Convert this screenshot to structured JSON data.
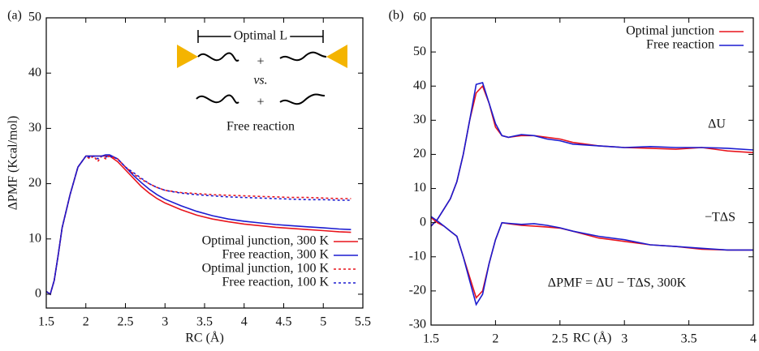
{
  "chart_data": [
    {
      "type": "line",
      "panel_label": "(a)",
      "xlabel": "RC (Å)",
      "ylabel": "ΔPMF (Kcal/mol)",
      "xlim": [
        1.5,
        5.5
      ],
      "xticks": [
        1.5,
        2,
        2.5,
        3,
        3.5,
        4,
        4.5,
        5,
        5.5
      ],
      "ylim": [
        -2.5,
        50
      ],
      "yticks": [
        0,
        10,
        20,
        30,
        40,
        50
      ],
      "legend": "lower right",
      "inset": {
        "labels": [
          "Optimal L",
          "+",
          "vs.",
          "+",
          "Free reaction"
        ]
      },
      "x": [
        1.5,
        1.55,
        1.6,
        1.65,
        1.7,
        1.75,
        1.8,
        1.9,
        2.0,
        2.05,
        2.1,
        2.15,
        2.2,
        2.25,
        2.3,
        2.4,
        2.5,
        2.6,
        2.7,
        2.8,
        2.9,
        3.0,
        3.2,
        3.4,
        3.6,
        3.8,
        4.0,
        4.2,
        4.4,
        4.6,
        4.8,
        5.0,
        5.2,
        5.35
      ],
      "series": [
        {
          "name": "Optimal junction, 300 K",
          "color": "#e8141c",
          "dash": false,
          "values": [
            0.5,
            0,
            2.5,
            7,
            12,
            15,
            18,
            23,
            25,
            25,
            25,
            25,
            25,
            25,
            25,
            24,
            22.5,
            21,
            19.5,
            18.3,
            17.3,
            16.5,
            15.3,
            14.3,
            13.6,
            13.1,
            12.7,
            12.4,
            12.1,
            11.9,
            11.7,
            11.5,
            11.3,
            11.2
          ]
        },
        {
          "name": "Free reaction, 300 K",
          "color": "#1c1cd0",
          "dash": false,
          "values": [
            0.5,
            0,
            2.5,
            7,
            12,
            15,
            18,
            23,
            25,
            25,
            25,
            25,
            25,
            25.2,
            25.2,
            24.5,
            23,
            21.5,
            20.2,
            19,
            18,
            17.2,
            16,
            15,
            14.2,
            13.6,
            13.2,
            12.9,
            12.6,
            12.4,
            12.2,
            12,
            11.8,
            11.7
          ]
        },
        {
          "name": "Optimal junction, 100 K",
          "color": "#e8141c",
          "dash": true,
          "values": [
            0.5,
            0,
            2.5,
            7,
            12,
            15,
            18,
            23,
            25,
            24.5,
            25,
            24,
            25,
            24.5,
            25,
            24.5,
            23,
            21.8,
            20.8,
            20,
            19.3,
            18.8,
            18.4,
            18.2,
            18,
            17.9,
            17.8,
            17.7,
            17.6,
            17.5,
            17.5,
            17.4,
            17.3,
            17.3
          ]
        },
        {
          "name": "Free reaction, 100 K",
          "color": "#1c1cd0",
          "dash": true,
          "values": [
            0.5,
            0,
            2.5,
            7,
            12,
            15,
            18,
            23,
            25,
            24.8,
            25,
            24.5,
            25,
            24.8,
            25,
            24.5,
            23,
            22,
            21,
            20,
            19.3,
            18.8,
            18.3,
            18,
            17.8,
            17.6,
            17.5,
            17.4,
            17.3,
            17.2,
            17.1,
            17.1,
            17,
            17
          ]
        }
      ]
    },
    {
      "type": "line",
      "panel_label": "(b)",
      "xlabel": "RC (Å)",
      "xlim": [
        1.5,
        4
      ],
      "xticks": [
        1.5,
        2,
        2.5,
        3,
        3.5,
        4
      ],
      "ylim": [
        -30,
        60
      ],
      "yticks": [
        -30,
        -20,
        -10,
        0,
        10,
        20,
        30,
        40,
        50,
        60
      ],
      "legend": "upper right",
      "annotations": [
        "ΔU",
        "−TΔS",
        "ΔPMF = ΔU − TΔS, 300K"
      ],
      "x": [
        1.5,
        1.55,
        1.6,
        1.65,
        1.7,
        1.75,
        1.8,
        1.85,
        1.9,
        1.95,
        2.0,
        2.05,
        2.1,
        2.2,
        2.3,
        2.4,
        2.5,
        2.6,
        2.8,
        3.0,
        3.2,
        3.4,
        3.6,
        3.8,
        4.0
      ],
      "series": [
        {
          "name": "Optimal junction",
          "color": "#e8141c",
          "in_legend": true,
          "values": [
            -1,
            1,
            4,
            7,
            12,
            20,
            30,
            38,
            40,
            35,
            28,
            25.5,
            25,
            25.5,
            25.5,
            25,
            24.5,
            23.5,
            22.5,
            22,
            21.8,
            21.5,
            22,
            21,
            20.5
          ]
        },
        {
          "name": "Free reaction",
          "color": "#1c1cd0",
          "in_legend": true,
          "values": [
            -1,
            1,
            4,
            7,
            12,
            20,
            30,
            40.5,
            41,
            35,
            29,
            25.5,
            25,
            25.8,
            25.5,
            24.5,
            24,
            23,
            22.5,
            22,
            22.3,
            22,
            22,
            21.8,
            21.3
          ]
        },
        {
          "name": "Optimal junction",
          "color": "#e8141c",
          "in_legend": false,
          "values": [
            1.5,
            0,
            -1,
            -2.5,
            -4,
            -10,
            -16,
            -22,
            -20,
            -12,
            -5,
            0,
            -0.3,
            -0.8,
            -1,
            -1.3,
            -1.6,
            -2.5,
            -4.5,
            -5.5,
            -6.5,
            -7,
            -7.8,
            -8,
            -8
          ]
        },
        {
          "name": "Free reaction",
          "color": "#1c1cd0",
          "in_legend": false,
          "values": [
            1.8,
            0.5,
            -1,
            -2.5,
            -4,
            -10,
            -17,
            -24,
            -21,
            -12,
            -5,
            0,
            -0.2,
            -0.5,
            -0.3,
            -0.8,
            -1.5,
            -2.5,
            -4,
            -5,
            -6.5,
            -7,
            -7.5,
            -8,
            -8
          ]
        }
      ]
    }
  ]
}
